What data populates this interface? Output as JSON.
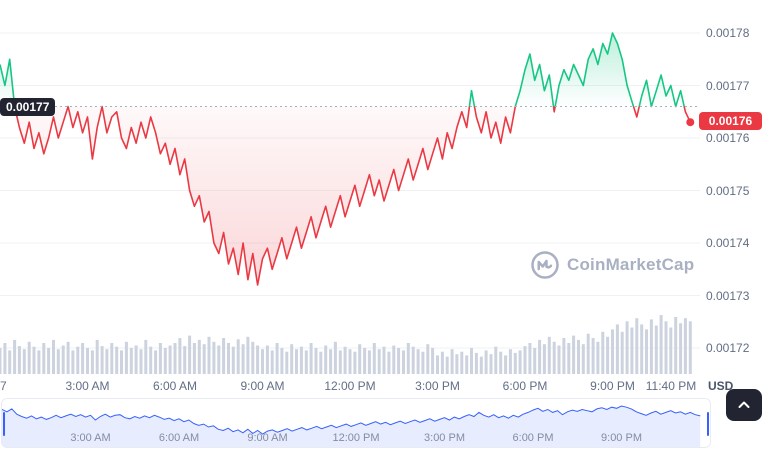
{
  "watermark": {
    "text": "CoinMarketCap",
    "logo_icon": "coinmarketcap-logo-icon",
    "color": "#a8b0c2"
  },
  "badges": {
    "baseline_label": "0.00177",
    "baseline_bg": "#222531",
    "current_label": "0.00176",
    "current_bg": "#ea3943"
  },
  "controls": {
    "expand_button_icon": "chevron-up-icon"
  },
  "chart_data": {
    "type": "line",
    "title": "",
    "interval_minutes": 10,
    "time_start": "00:00",
    "time_end": "23:40",
    "prices_x1e5": [
      177.4,
      177.0,
      177.5,
      176.6,
      176.2,
      175.9,
      176.3,
      175.8,
      176.1,
      175.7,
      176.0,
      176.4,
      176.0,
      176.3,
      176.6,
      176.2,
      176.5,
      176.1,
      176.4,
      175.6,
      176.2,
      176.6,
      176.1,
      176.4,
      176.5,
      176.0,
      175.8,
      176.2,
      175.9,
      176.3,
      176.0,
      176.4,
      176.1,
      175.7,
      175.9,
      175.5,
      175.8,
      175.3,
      175.6,
      175.0,
      174.7,
      174.9,
      174.4,
      174.6,
      174.0,
      173.8,
      174.2,
      173.6,
      173.9,
      173.4,
      174.0,
      173.3,
      173.8,
      173.2,
      173.7,
      173.9,
      173.5,
      173.8,
      174.1,
      173.7,
      174.0,
      174.3,
      173.9,
      174.2,
      174.5,
      174.1,
      174.4,
      174.7,
      174.3,
      174.6,
      174.9,
      174.5,
      174.8,
      175.1,
      174.7,
      175.0,
      175.3,
      174.9,
      175.2,
      174.8,
      175.1,
      175.4,
      175.0,
      175.3,
      175.6,
      175.2,
      175.5,
      175.8,
      175.4,
      175.7,
      176.0,
      175.6,
      176.1,
      175.8,
      176.2,
      176.5,
      176.2,
      176.9,
      176.4,
      176.1,
      176.5,
      176.0,
      176.3,
      175.9,
      176.4,
      176.1,
      176.6,
      176.9,
      177.3,
      177.6,
      177.1,
      177.4,
      176.9,
      177.2,
      176.5,
      177.0,
      177.3,
      177.1,
      177.4,
      177.2,
      177.0,
      177.5,
      177.7,
      177.4,
      177.8,
      177.6,
      178.0,
      177.8,
      177.5,
      177.0,
      176.7,
      176.4,
      176.8,
      177.1,
      176.6,
      176.9,
      177.2,
      176.8,
      177.0,
      176.6,
      176.9,
      176.5,
      176.3
    ],
    "volumes_rel": [
      0.42,
      0.5,
      0.38,
      0.55,
      0.45,
      0.4,
      0.52,
      0.44,
      0.38,
      0.5,
      0.42,
      0.55,
      0.4,
      0.46,
      0.52,
      0.38,
      0.44,
      0.5,
      0.42,
      0.38,
      0.55,
      0.45,
      0.4,
      0.5,
      0.44,
      0.38,
      0.52,
      0.42,
      0.46,
      0.4,
      0.55,
      0.44,
      0.38,
      0.5,
      0.42,
      0.46,
      0.5,
      0.58,
      0.45,
      0.62,
      0.5,
      0.55,
      0.48,
      0.6,
      0.52,
      0.46,
      0.58,
      0.5,
      0.44,
      0.56,
      0.48,
      0.6,
      0.52,
      0.46,
      0.4,
      0.46,
      0.38,
      0.5,
      0.42,
      0.36,
      0.48,
      0.4,
      0.44,
      0.38,
      0.5,
      0.42,
      0.36,
      0.46,
      0.4,
      0.52,
      0.38,
      0.44,
      0.4,
      0.36,
      0.48,
      0.42,
      0.38,
      0.5,
      0.4,
      0.44,
      0.36,
      0.46,
      0.42,
      0.38,
      0.5,
      0.44,
      0.4,
      0.36,
      0.48,
      0.42,
      0.3,
      0.36,
      0.28,
      0.4,
      0.32,
      0.36,
      0.3,
      0.42,
      0.34,
      0.28,
      0.38,
      0.32,
      0.44,
      0.36,
      0.3,
      0.4,
      0.34,
      0.38,
      0.45,
      0.5,
      0.42,
      0.55,
      0.48,
      0.6,
      0.52,
      0.46,
      0.58,
      0.5,
      0.62,
      0.55,
      0.48,
      0.65,
      0.58,
      0.52,
      0.68,
      0.6,
      0.72,
      0.8,
      0.68,
      0.85,
      0.75,
      0.9,
      0.8,
      0.72,
      0.88,
      0.78,
      0.95,
      0.85,
      0.75,
      0.92,
      0.82,
      0.9,
      0.85
    ],
    "baseline_x1e5": 176.6,
    "current_x1e5": 176.3,
    "y_axis": {
      "unit": "USD",
      "ticks": [
        {
          "label": "0.00178",
          "v": 178
        },
        {
          "label": "0.00177",
          "v": 177
        },
        {
          "label": "0.00176",
          "v": 176
        },
        {
          "label": "0.00175",
          "v": 175
        },
        {
          "label": "0.00174",
          "v": 174
        },
        {
          "label": "0.00173",
          "v": 173
        },
        {
          "label": "0.00172",
          "v": 172
        }
      ]
    },
    "x_ticks": [
      {
        "label": "7",
        "t": 0.0
      },
      {
        "label": "3:00 AM",
        "t": 0.125
      },
      {
        "label": "6:00 AM",
        "t": 0.25
      },
      {
        "label": "9:00 AM",
        "t": 0.375
      },
      {
        "label": "12:00 PM",
        "t": 0.5
      },
      {
        "label": "3:00 PM",
        "t": 0.625
      },
      {
        "label": "6:00 PM",
        "t": 0.75
      },
      {
        "label": "9:00 PM",
        "t": 0.875
      },
      {
        "label": "11:40 PM",
        "t": 0.986
      }
    ],
    "navigator_ticks": [
      {
        "label": "3:00 AM",
        "t": 0.125
      },
      {
        "label": "6:00 AM",
        "t": 0.25
      },
      {
        "label": "9:00 AM",
        "t": 0.375
      },
      {
        "label": "12:00 PM",
        "t": 0.5
      },
      {
        "label": "3:00 PM",
        "t": 0.625
      },
      {
        "label": "6:00 PM",
        "t": 0.75
      },
      {
        "label": "9:00 PM",
        "t": 0.875
      }
    ],
    "colors": {
      "up": "#16c784",
      "down": "#ea3943",
      "volume_bar": "#ccd3de",
      "navigator_line": "#3861fb",
      "navigator_fill": "rgba(56,97,251,0.12)",
      "grid": "#eff2f5",
      "baseline_dash": "#a6b0c3",
      "axis_text": "#616e85"
    },
    "legend": null,
    "grid": "horizontal-faint"
  }
}
